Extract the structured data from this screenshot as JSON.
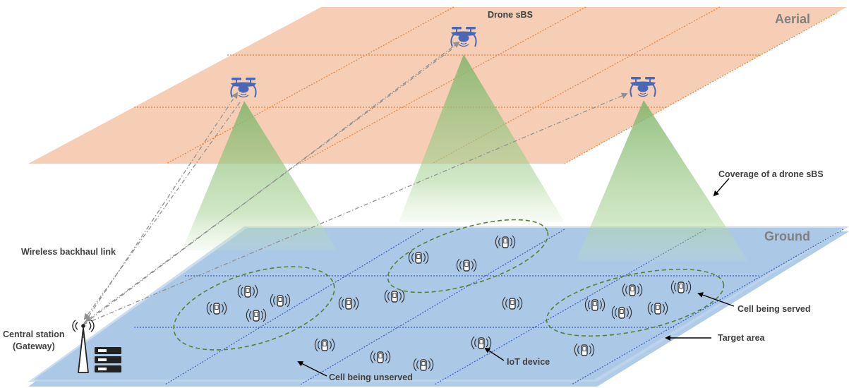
{
  "labels": {
    "aerial": "Aerial",
    "ground": "Ground",
    "drone": "Drone sBS",
    "coverage": "Coverage of a drone sBS",
    "backhaul": "Wireless backhaul link",
    "central_line1": "Central station",
    "central_line2": "(Gateway)",
    "served": "Cell being served",
    "target": "Target area",
    "iot": "IoT device",
    "unserved": "Cell being unserved"
  },
  "colors": {
    "aerial_plane": "#f5c6a8",
    "aerial_grid": "#e8823a",
    "ground_plane": "#a9c6e6",
    "ground_grid": "#3a5fc0",
    "coverage": "#8fc07a",
    "drone": "#4a68b5",
    "cell_ellipse": "#548235",
    "backhaul": "#909090",
    "text": "#404040"
  },
  "icons": [
    "drone-icon",
    "iot-device-icon",
    "antenna-tower-icon",
    "server-rack-icon"
  ]
}
